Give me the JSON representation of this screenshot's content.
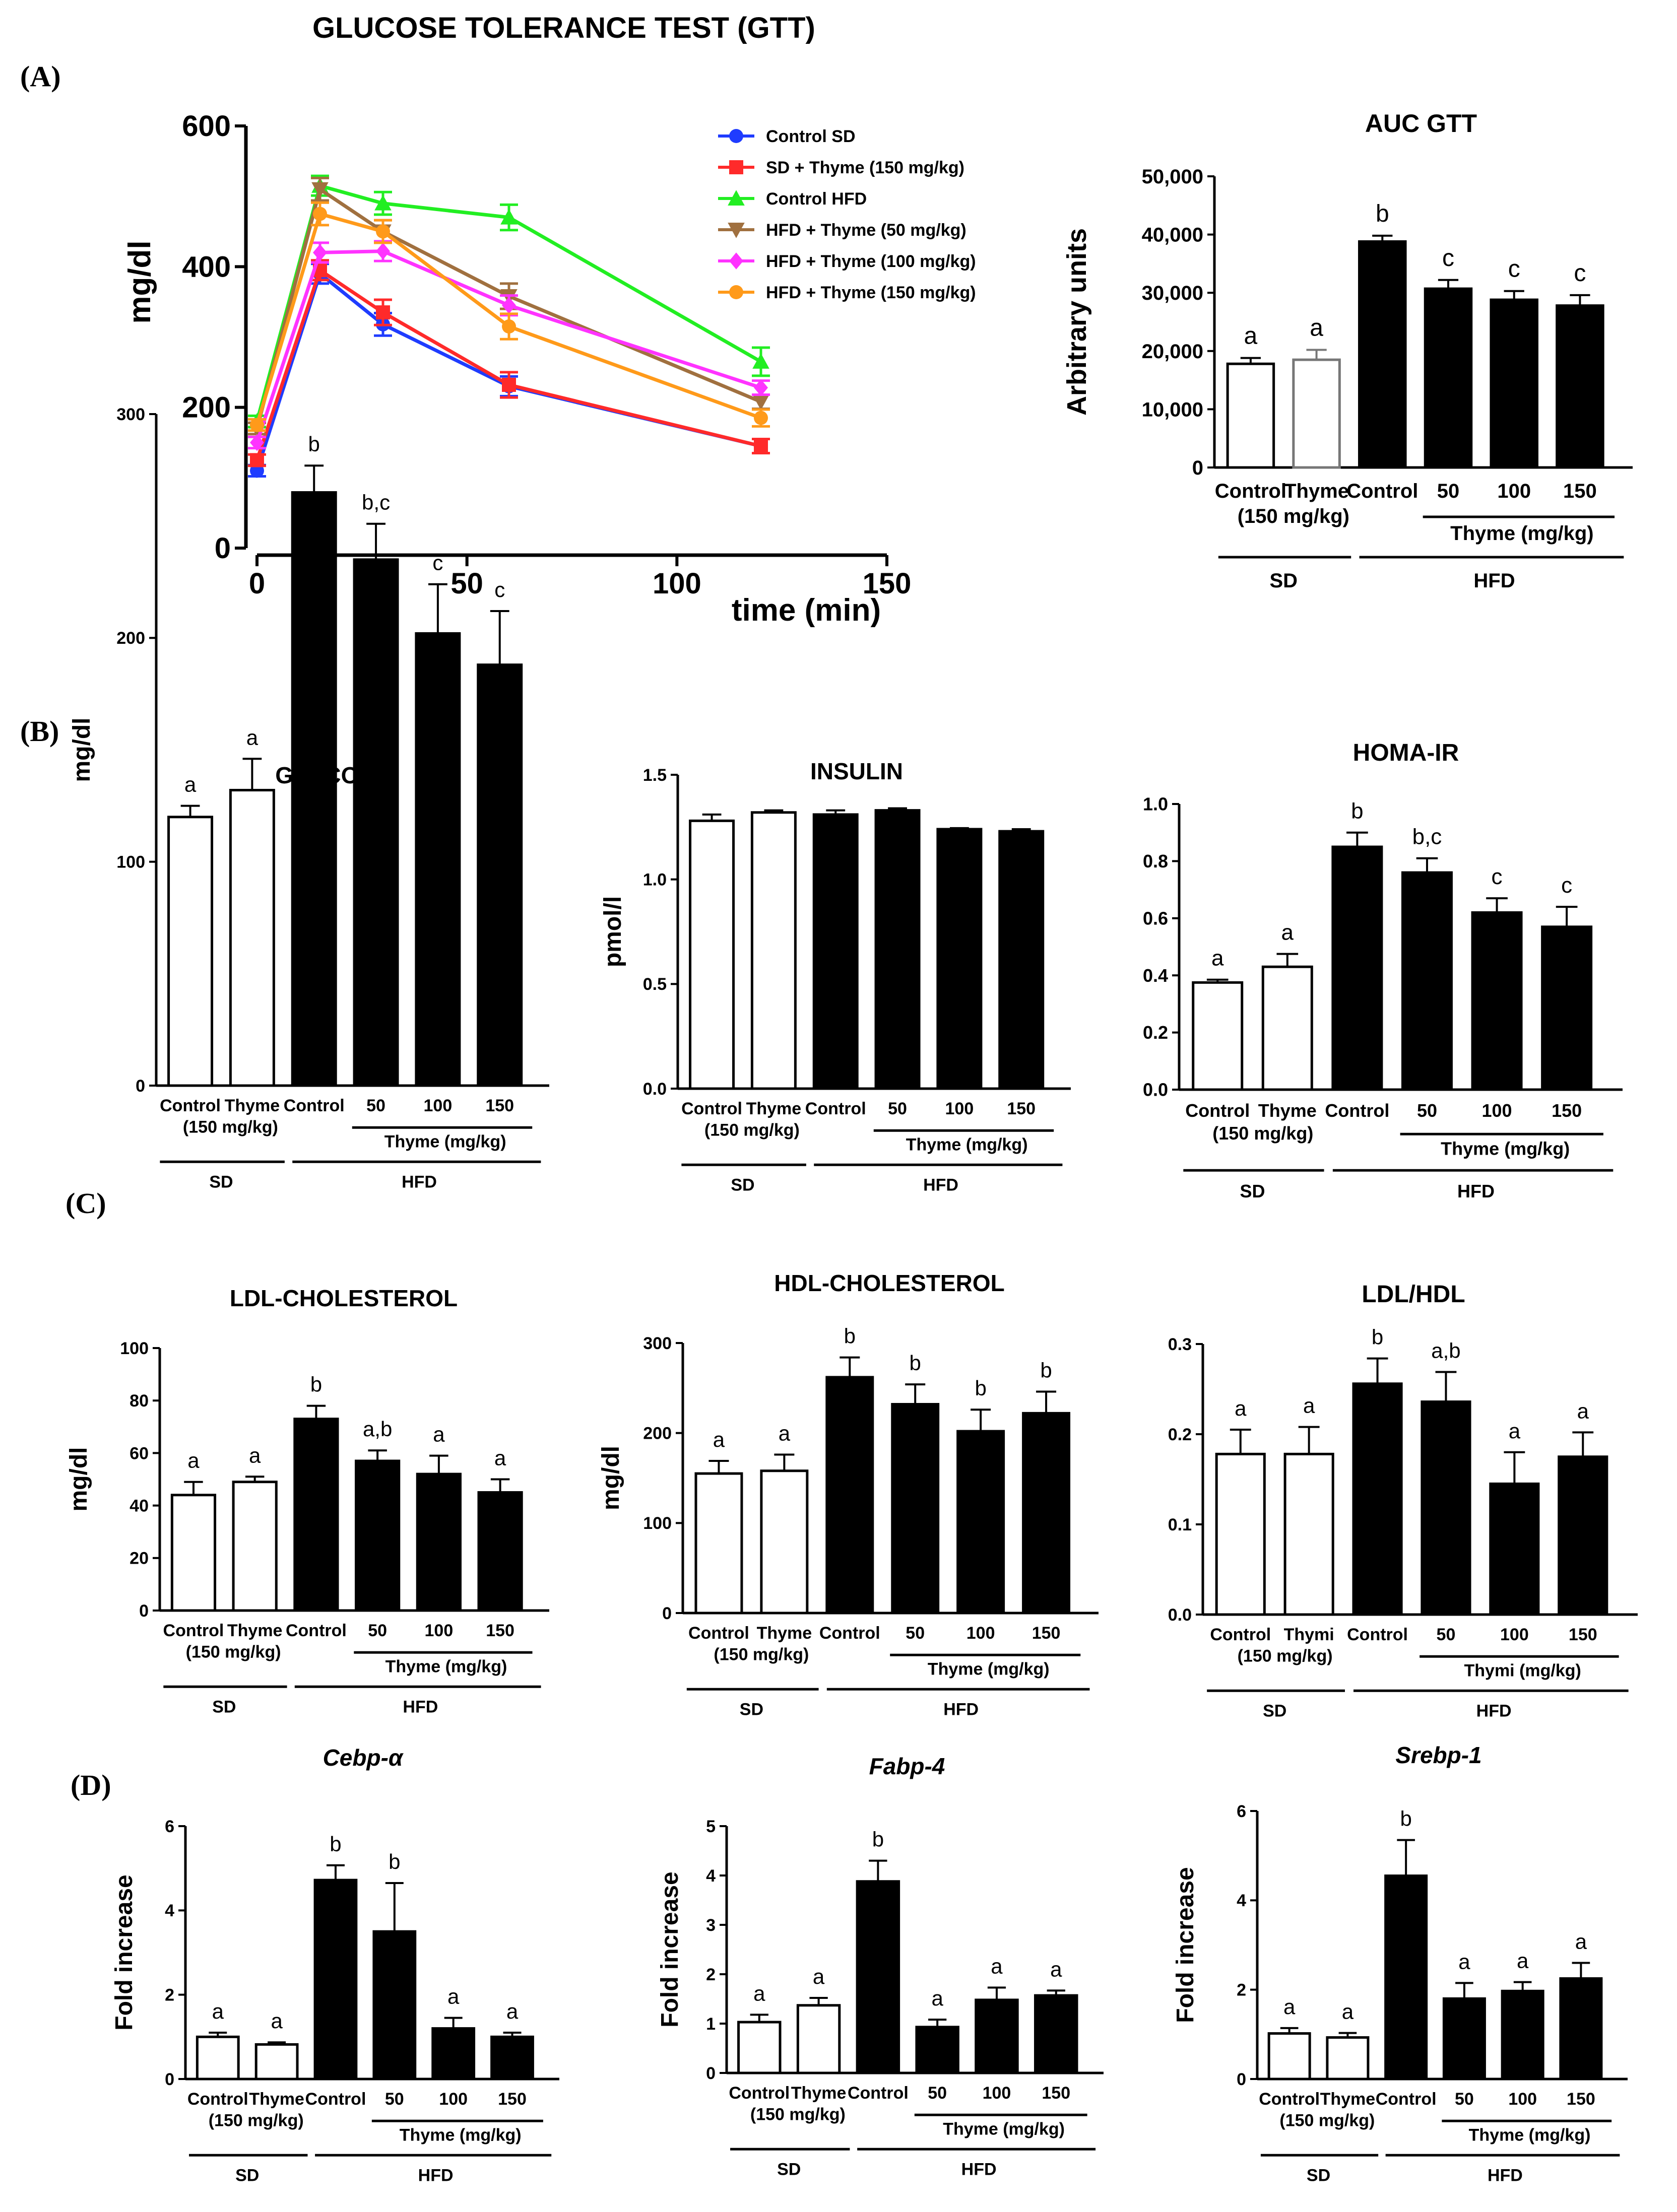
{
  "figure": {
    "title": "GLUCOSE TOLERANCE TEST (GTT)",
    "panel_labels": [
      "(A)",
      "(B)",
      "(C)",
      "(D)"
    ],
    "group_labels": {
      "sd": "SD",
      "hfd": "HFD"
    }
  },
  "chart_data": [
    {
      "id": "gtt-line",
      "type": "line",
      "title": "",
      "xlabel": "time (min)",
      "ylabel": "mg/dl",
      "xlim": [
        0,
        150
      ],
      "ylim": [
        0,
        600
      ],
      "xticks": [
        0,
        50,
        100,
        150
      ],
      "yticks": [
        0,
        200,
        400,
        600
      ],
      "x": [
        0,
        15,
        30,
        60,
        120
      ],
      "series": [
        {
          "name": "Control SD",
          "color": "#1f3cff",
          "marker": "circle",
          "values": [
            110,
            390,
            318,
            230,
            145
          ],
          "errors": [
            8,
            14,
            16,
            14,
            10
          ]
        },
        {
          "name": "SD + Thyme (150 mg/kg)",
          "color": "#ff2a2a",
          "marker": "square",
          "values": [
            125,
            395,
            335,
            232,
            145
          ],
          "errors": [
            8,
            14,
            18,
            18,
            10
          ]
        },
        {
          "name": "Control HFD",
          "color": "#22ee22",
          "marker": "triangle-up",
          "values": [
            180,
            515,
            490,
            470,
            265
          ],
          "errors": [
            8,
            14,
            16,
            18,
            20
          ]
        },
        {
          "name": "HFD + Thyme (50 mg/kg)",
          "color": "#a0703f",
          "marker": "triangle-down",
          "values": [
            170,
            510,
            450,
            358,
            208
          ],
          "errors": [
            8,
            16,
            16,
            18,
            10
          ]
        },
        {
          "name": "HFD + Thyme (100 mg/kg)",
          "color": "#ff33ff",
          "marker": "diamond",
          "values": [
            150,
            420,
            422,
            345,
            228
          ],
          "errors": [
            8,
            14,
            14,
            14,
            10
          ]
        },
        {
          "name": "HFD + Thyme (150 mg/kg)",
          "color": "#ff9a1a",
          "marker": "circle",
          "values": [
            175,
            475,
            450,
            315,
            185
          ],
          "errors": [
            8,
            16,
            16,
            18,
            12
          ]
        }
      ]
    },
    {
      "id": "auc-gtt",
      "type": "bar",
      "title": "AUC GTT",
      "ylabel": "Arbitrary units",
      "ylim": [
        0,
        50000
      ],
      "yticks": [
        "0",
        "10,000",
        "20,000",
        "30,000",
        "40,000",
        "50,000"
      ],
      "ytick_values": [
        0,
        10000,
        20000,
        30000,
        40000,
        50000
      ],
      "categories": [
        "Control",
        "Thyme",
        "Control",
        "50",
        "100",
        "150"
      ],
      "sub_label": "(150 mg/kg)",
      "hfd_sub_label": "Thyme (mg/kg)",
      "values": [
        17800,
        18500,
        38800,
        30700,
        28800,
        27800
      ],
      "errors": [
        1000,
        1700,
        1000,
        1500,
        1500,
        1800
      ],
      "letters": [
        "a",
        "a",
        "b",
        "c",
        "c",
        "c"
      ],
      "fills": [
        "#ffffff",
        "#ffffff",
        "#000000",
        "#000000",
        "#000000",
        "#000000"
      ],
      "strokes": [
        "#000000",
        "#777777",
        "#000000",
        "#000000",
        "#000000",
        "#000000"
      ]
    },
    {
      "id": "glucose",
      "type": "bar",
      "title": "GLUCOSE",
      "ylabel": "mg/dl",
      "ylim": [
        0,
        300
      ],
      "yticks": [
        "0",
        "100",
        "200",
        "300"
      ],
      "ytick_values": [
        0,
        100,
        200,
        300
      ],
      "categories": [
        "Control",
        "Thyme",
        "Control",
        "50",
        "100",
        "150"
      ],
      "sub_label": "(150 mg/kg)",
      "hfd_sub_label": "Thyme (mg/kg)",
      "values": [
        120,
        132,
        265,
        235,
        202,
        188
      ],
      "errors": [
        5,
        14,
        12,
        16,
        22,
        24
      ],
      "letters": [
        "a",
        "a",
        "b",
        "b,c",
        "c",
        "c"
      ],
      "fills": [
        "#ffffff",
        "#ffffff",
        "#000000",
        "#000000",
        "#000000",
        "#000000"
      ],
      "strokes": [
        "#000000",
        "#000000",
        "#000000",
        "#000000",
        "#000000",
        "#000000"
      ]
    },
    {
      "id": "insulin",
      "type": "bar",
      "title": "INSULIN",
      "ylabel": "pmol/l",
      "ylim": [
        0,
        1.5
      ],
      "yticks": [
        "0.0",
        "0.5",
        "1.0",
        "1.5"
      ],
      "ytick_values": [
        0,
        0.5,
        1.0,
        1.5
      ],
      "categories": [
        "Control",
        "Thyme",
        "Control",
        "50",
        "100",
        "150"
      ],
      "sub_label": "(150 mg/kg)",
      "hfd_sub_label": "Thyme (mg/kg)",
      "values": [
        1.28,
        1.32,
        1.31,
        1.33,
        1.24,
        1.23
      ],
      "errors": [
        0.03,
        0.01,
        0.02,
        0.01,
        0.005,
        0.01
      ],
      "letters": [
        "",
        "",
        "",
        "",
        "",
        ""
      ],
      "fills": [
        "#ffffff",
        "#ffffff",
        "#000000",
        "#000000",
        "#000000",
        "#000000"
      ],
      "strokes": [
        "#000000",
        "#000000",
        "#000000",
        "#000000",
        "#000000",
        "#000000"
      ]
    },
    {
      "id": "homa-ir",
      "type": "bar",
      "title": "HOMA-IR",
      "ylabel": "",
      "ylim": [
        0,
        1.0
      ],
      "yticks": [
        "0.0",
        "0.2",
        "0.4",
        "0.6",
        "0.8",
        "1.0"
      ],
      "ytick_values": [
        0,
        0.2,
        0.4,
        0.6,
        0.8,
        1.0
      ],
      "categories": [
        "Control",
        "Thyme",
        "Control",
        "50",
        "100",
        "150"
      ],
      "sub_label": "(150 mg/kg)",
      "hfd_sub_label": "Thyme (mg/kg)",
      "values": [
        0.375,
        0.43,
        0.85,
        0.76,
        0.62,
        0.57
      ],
      "errors": [
        0.01,
        0.045,
        0.05,
        0.05,
        0.05,
        0.07
      ],
      "letters": [
        "a",
        "a",
        "b",
        "b,c",
        "c",
        "c"
      ],
      "fills": [
        "#ffffff",
        "#ffffff",
        "#000000",
        "#000000",
        "#000000",
        "#000000"
      ],
      "strokes": [
        "#000000",
        "#000000",
        "#000000",
        "#000000",
        "#000000",
        "#000000"
      ]
    },
    {
      "id": "ldl",
      "type": "bar",
      "title": "LDL-CHOLESTEROL",
      "ylabel": "mg/dl",
      "ylim": [
        0,
        100
      ],
      "yticks": [
        "0",
        "20",
        "40",
        "60",
        "80",
        "100"
      ],
      "ytick_values": [
        0,
        20,
        40,
        60,
        80,
        100
      ],
      "categories": [
        "Control",
        "Thyme",
        "Control",
        "50",
        "100",
        "150"
      ],
      "sub_label": "(150 mg/kg)",
      "hfd_sub_label": "Thyme (mg/kg)",
      "values": [
        44,
        49,
        73,
        57,
        52,
        45
      ],
      "errors": [
        5,
        2,
        5,
        4,
        7,
        5
      ],
      "letters": [
        "a",
        "a",
        "b",
        "a,b",
        "a",
        "a"
      ],
      "fills": [
        "#ffffff",
        "#ffffff",
        "#000000",
        "#000000",
        "#000000",
        "#000000"
      ],
      "strokes": [
        "#000000",
        "#000000",
        "#000000",
        "#000000",
        "#000000",
        "#000000"
      ]
    },
    {
      "id": "hdl",
      "type": "bar",
      "title": "HDL-CHOLESTEROL",
      "ylabel": "mg/dl",
      "ylim": [
        0,
        300
      ],
      "yticks": [
        "0",
        "100",
        "200",
        "300"
      ],
      "ytick_values": [
        0,
        100,
        200,
        300
      ],
      "categories": [
        "Control",
        "Thyme",
        "Control",
        "50",
        "100",
        "150"
      ],
      "sub_label": "(150 mg/kg)",
      "hfd_sub_label": "Thyme (mg/kg)",
      "values": [
        155,
        158,
        262,
        232,
        202,
        222
      ],
      "errors": [
        14,
        18,
        22,
        22,
        24,
        24
      ],
      "letters": [
        "a",
        "a",
        "b",
        "b",
        "b",
        "b"
      ],
      "fills": [
        "#ffffff",
        "#ffffff",
        "#000000",
        "#000000",
        "#000000",
        "#000000"
      ],
      "strokes": [
        "#000000",
        "#000000",
        "#000000",
        "#000000",
        "#000000",
        "#000000"
      ]
    },
    {
      "id": "ldl-hdl",
      "type": "bar",
      "title": "LDL/HDL",
      "ylabel": "",
      "ylim": [
        0,
        0.3
      ],
      "yticks": [
        "0.0",
        "0.1",
        "0.2",
        "0.3"
      ],
      "ytick_values": [
        0,
        0.1,
        0.2,
        0.3
      ],
      "categories": [
        "Control",
        "Thymi",
        "Control",
        "50",
        "100",
        "150"
      ],
      "sub_label": "(150 mg/kg)",
      "hfd_sub_label": "Thymi (mg/kg)",
      "values": [
        0.178,
        0.178,
        0.256,
        0.236,
        0.145,
        0.175
      ],
      "errors": [
        0.027,
        0.03,
        0.028,
        0.033,
        0.035,
        0.027
      ],
      "letters": [
        "a",
        "a",
        "b",
        "a,b",
        "a",
        "a"
      ],
      "fills": [
        "#ffffff",
        "#ffffff",
        "#000000",
        "#000000",
        "#000000",
        "#000000"
      ],
      "strokes": [
        "#000000",
        "#000000",
        "#000000",
        "#000000",
        "#000000",
        "#000000"
      ]
    },
    {
      "id": "cebp",
      "type": "bar",
      "title": "Cebp-α",
      "title_italic": true,
      "ylabel": "Fold increase",
      "ylim": [
        0,
        6
      ],
      "yticks": [
        "0",
        "2",
        "4",
        "6"
      ],
      "ytick_values": [
        0,
        2,
        4,
        6
      ],
      "categories": [
        "Control",
        "Thyme",
        "Control",
        "50",
        "100",
        "150"
      ],
      "sub_label": "(150 mg/kg)",
      "hfd_sub_label": "Thyme (mg/kg)",
      "values": [
        1.0,
        0.82,
        4.72,
        3.5,
        1.2,
        1.0
      ],
      "errors": [
        0.1,
        0.05,
        0.35,
        1.15,
        0.25,
        0.1
      ],
      "letters": [
        "a",
        "a",
        "b",
        "b",
        "a",
        "a"
      ],
      "fills": [
        "#ffffff",
        "#ffffff",
        "#000000",
        "#000000",
        "#000000",
        "#000000"
      ],
      "strokes": [
        "#000000",
        "#000000",
        "#000000",
        "#000000",
        "#000000",
        "#000000"
      ]
    },
    {
      "id": "fabp",
      "type": "bar",
      "title": "Fabp-4",
      "title_italic": true,
      "ylabel": "Fold increase",
      "ylim": [
        0,
        5
      ],
      "yticks": [
        "0",
        "1",
        "2",
        "3",
        "4",
        "5"
      ],
      "ytick_values": [
        0,
        1,
        2,
        3,
        4,
        5
      ],
      "categories": [
        "Control",
        "Thyme",
        "Control",
        "50",
        "100",
        "150"
      ],
      "sub_label": "(150 mg/kg)",
      "hfd_sub_label": "Thyme (mg/kg)",
      "values": [
        1.03,
        1.37,
        3.88,
        0.93,
        1.48,
        1.57
      ],
      "errors": [
        0.15,
        0.15,
        0.42,
        0.15,
        0.25,
        0.1
      ],
      "letters": [
        "a",
        "a",
        "b",
        "a",
        "a",
        "a"
      ],
      "fills": [
        "#ffffff",
        "#ffffff",
        "#000000",
        "#000000",
        "#000000",
        "#000000"
      ],
      "strokes": [
        "#000000",
        "#000000",
        "#000000",
        "#000000",
        "#000000",
        "#000000"
      ]
    },
    {
      "id": "srebp",
      "type": "bar",
      "title": "Srebp-1",
      "title_italic": true,
      "ylabel": "Fold increase",
      "ylim": [
        0,
        6
      ],
      "yticks": [
        "0",
        "2",
        "4",
        "6"
      ],
      "ytick_values": [
        0,
        2,
        4,
        6
      ],
      "categories": [
        "Control",
        "Thyme",
        "Control",
        "50",
        "100",
        "150"
      ],
      "sub_label": "(150 mg/kg)",
      "hfd_sub_label": "Thyme (mg/kg)",
      "values": [
        1.02,
        0.93,
        4.55,
        1.8,
        1.97,
        2.25
      ],
      "errors": [
        0.12,
        0.1,
        0.8,
        0.35,
        0.2,
        0.35
      ],
      "letters": [
        "a",
        "a",
        "b",
        "a",
        "a",
        "a"
      ],
      "fills": [
        "#ffffff",
        "#ffffff",
        "#000000",
        "#000000",
        "#000000",
        "#000000"
      ],
      "strokes": [
        "#000000",
        "#000000",
        "#000000",
        "#000000",
        "#000000",
        "#000000"
      ]
    }
  ]
}
